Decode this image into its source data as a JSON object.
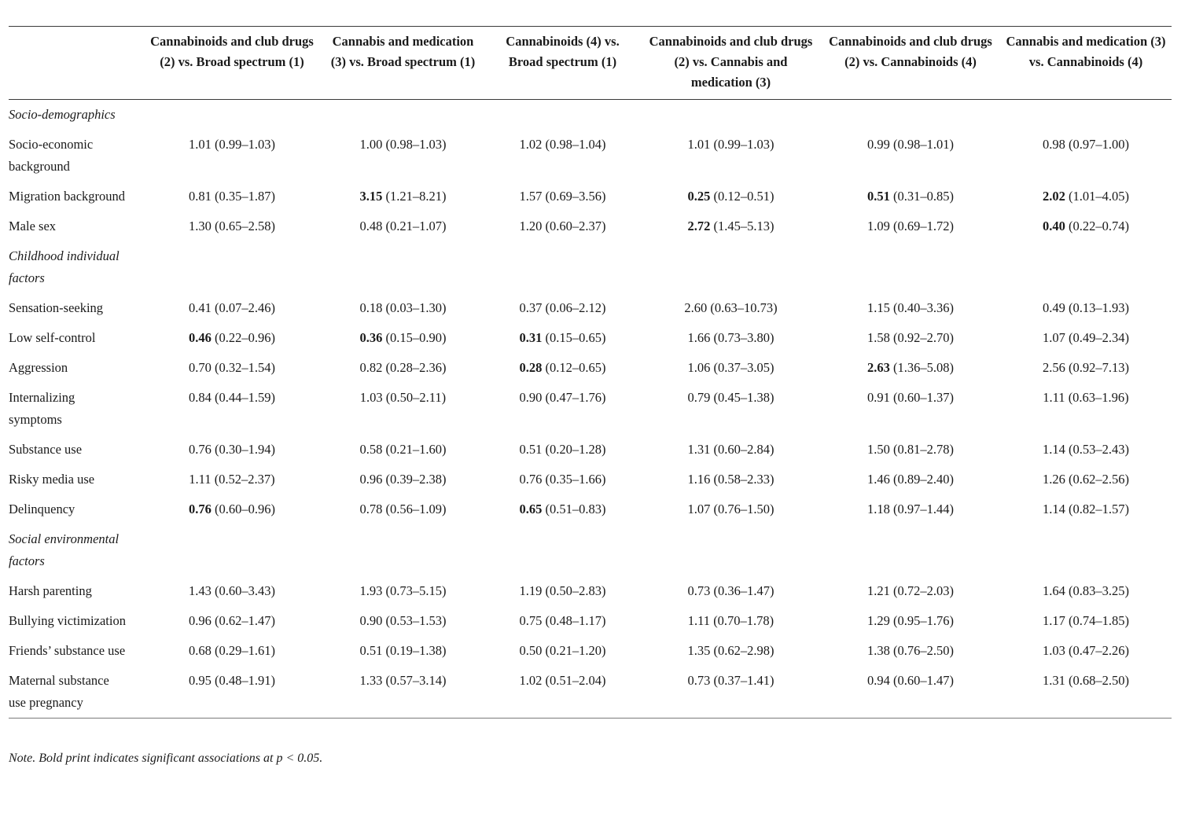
{
  "table": {
    "columns": [
      "Cannabinoids and club drugs (2) vs. Broad spectrum (1)",
      "Cannabis and medication (3) vs. Broad spectrum (1)",
      "Cannabinoids (4) vs. Broad spectrum (1)",
      "Cannabinoids and club drugs (2) vs. Cannabis and medication (3)",
      "Cannabinoids and club drugs (2) vs. Cannabinoids (4)",
      "Cannabis and medication (3) vs. Cannabinoids (4)"
    ],
    "sections": [
      {
        "label": "Socio-demographics",
        "rows": [
          {
            "label": "Socio-economic background",
            "cells": [
              {
                "value": "1.01",
                "ci": "(0.99–1.03)",
                "bold": false
              },
              {
                "value": "1.00",
                "ci": "(0.98–1.03)",
                "bold": false
              },
              {
                "value": "1.02",
                "ci": "(0.98–1.04)",
                "bold": false
              },
              {
                "value": "1.01",
                "ci": "(0.99–1.03)",
                "bold": false
              },
              {
                "value": "0.99",
                "ci": "(0.98–1.01)",
                "bold": false
              },
              {
                "value": "0.98",
                "ci": "(0.97–1.00)",
                "bold": false
              }
            ]
          },
          {
            "label": "Migration background",
            "cells": [
              {
                "value": "0.81",
                "ci": "(0.35–1.87)",
                "bold": false
              },
              {
                "value": "3.15",
                "ci": "(1.21–8.21)",
                "bold": true
              },
              {
                "value": "1.57",
                "ci": "(0.69–3.56)",
                "bold": false
              },
              {
                "value": "0.25",
                "ci": "(0.12–0.51)",
                "bold": true
              },
              {
                "value": "0.51",
                "ci": "(0.31–0.85)",
                "bold": true
              },
              {
                "value": "2.02",
                "ci": "(1.01–4.05)",
                "bold": true
              }
            ]
          },
          {
            "label": "Male sex",
            "cells": [
              {
                "value": "1.30",
                "ci": "(0.65–2.58)",
                "bold": false
              },
              {
                "value": "0.48",
                "ci": "(0.21–1.07)",
                "bold": false
              },
              {
                "value": "1.20",
                "ci": "(0.60–2.37)",
                "bold": false
              },
              {
                "value": "2.72",
                "ci": "(1.45–5.13)",
                "bold": true
              },
              {
                "value": "1.09",
                "ci": "(0.69–1.72)",
                "bold": false
              },
              {
                "value": "0.40",
                "ci": "(0.22–0.74)",
                "bold": true
              }
            ]
          }
        ]
      },
      {
        "label": "Childhood individual factors",
        "rows": [
          {
            "label": "Sensation-seeking",
            "cells": [
              {
                "value": "0.41",
                "ci": "(0.07–2.46)",
                "bold": false
              },
              {
                "value": "0.18",
                "ci": "(0.03–1.30)",
                "bold": false
              },
              {
                "value": "0.37",
                "ci": "(0.06–2.12)",
                "bold": false
              },
              {
                "value": "2.60",
                "ci": "(0.63–10.73)",
                "bold": false
              },
              {
                "value": "1.15",
                "ci": "(0.40–3.36)",
                "bold": false
              },
              {
                "value": "0.49",
                "ci": "(0.13–1.93)",
                "bold": false
              }
            ]
          },
          {
            "label": "Low self-control",
            "cells": [
              {
                "value": "0.46",
                "ci": "(0.22–0.96)",
                "bold": true
              },
              {
                "value": "0.36",
                "ci": "(0.15–0.90)",
                "bold": true
              },
              {
                "value": "0.31",
                "ci": "(0.15–0.65)",
                "bold": true
              },
              {
                "value": "1.66",
                "ci": "(0.73–3.80)",
                "bold": false
              },
              {
                "value": "1.58",
                "ci": "(0.92–2.70)",
                "bold": false
              },
              {
                "value": "1.07",
                "ci": "(0.49–2.34)",
                "bold": false
              }
            ]
          },
          {
            "label": "Aggression",
            "cells": [
              {
                "value": "0.70",
                "ci": "(0.32–1.54)",
                "bold": false
              },
              {
                "value": "0.82",
                "ci": "(0.28–2.36)",
                "bold": false
              },
              {
                "value": "0.28",
                "ci": "(0.12–0.65)",
                "bold": true
              },
              {
                "value": "1.06",
                "ci": "(0.37–3.05)",
                "bold": false
              },
              {
                "value": "2.63",
                "ci": "(1.36–5.08)",
                "bold": true
              },
              {
                "value": "2.56",
                "ci": "(0.92–7.13)",
                "bold": false
              }
            ]
          },
          {
            "label": "Internalizing symptoms",
            "cells": [
              {
                "value": "0.84",
                "ci": "(0.44–1.59)",
                "bold": false
              },
              {
                "value": "1.03",
                "ci": "(0.50–2.11)",
                "bold": false
              },
              {
                "value": "0.90",
                "ci": "(0.47–1.76)",
                "bold": false
              },
              {
                "value": "0.79",
                "ci": "(0.45–1.38)",
                "bold": false
              },
              {
                "value": "0.91",
                "ci": "(0.60–1.37)",
                "bold": false
              },
              {
                "value": "1.11",
                "ci": "(0.63–1.96)",
                "bold": false
              }
            ]
          },
          {
            "label": "Substance use",
            "cells": [
              {
                "value": "0.76",
                "ci": "(0.30–1.94)",
                "bold": false
              },
              {
                "value": "0.58",
                "ci": "(0.21–1.60)",
                "bold": false
              },
              {
                "value": "0.51",
                "ci": "(0.20–1.28)",
                "bold": false
              },
              {
                "value": "1.31",
                "ci": "(0.60–2.84)",
                "bold": false
              },
              {
                "value": "1.50",
                "ci": "(0.81–2.78)",
                "bold": false
              },
              {
                "value": "1.14",
                "ci": "(0.53–2.43)",
                "bold": false
              }
            ]
          },
          {
            "label": "Risky media use",
            "cells": [
              {
                "value": "1.11",
                "ci": "(0.52–2.37)",
                "bold": false
              },
              {
                "value": "0.96",
                "ci": "(0.39–2.38)",
                "bold": false
              },
              {
                "value": "0.76",
                "ci": "(0.35–1.66)",
                "bold": false
              },
              {
                "value": "1.16",
                "ci": "(0.58–2.33)",
                "bold": false
              },
              {
                "value": "1.46",
                "ci": "(0.89–2.40)",
                "bold": false
              },
              {
                "value": "1.26",
                "ci": "(0.62–2.56)",
                "bold": false
              }
            ]
          },
          {
            "label": "Delinquency",
            "cells": [
              {
                "value": "0.76",
                "ci": "(0.60–0.96)",
                "bold": true
              },
              {
                "value": "0.78",
                "ci": "(0.56–1.09)",
                "bold": false
              },
              {
                "value": "0.65",
                "ci": "(0.51–0.83)",
                "bold": true
              },
              {
                "value": "1.07",
                "ci": "(0.76–1.50)",
                "bold": false
              },
              {
                "value": "1.18",
                "ci": "(0.97–1.44)",
                "bold": false
              },
              {
                "value": "1.14",
                "ci": "(0.82–1.57)",
                "bold": false
              }
            ]
          }
        ]
      },
      {
        "label": "Social environmental factors",
        "rows": [
          {
            "label": "Harsh parenting",
            "cells": [
              {
                "value": "1.43",
                "ci": "(0.60–3.43)",
                "bold": false
              },
              {
                "value": "1.93",
                "ci": "(0.73–5.15)",
                "bold": false
              },
              {
                "value": "1.19",
                "ci": "(0.50–2.83)",
                "bold": false
              },
              {
                "value": "0.73",
                "ci": "(0.36–1.47)",
                "bold": false
              },
              {
                "value": "1.21",
                "ci": "(0.72–2.03)",
                "bold": false
              },
              {
                "value": "1.64",
                "ci": "(0.83–3.25)",
                "bold": false
              }
            ]
          },
          {
            "label": "Bullying victimization",
            "cells": [
              {
                "value": "0.96",
                "ci": "(0.62–1.47)",
                "bold": false
              },
              {
                "value": "0.90",
                "ci": "(0.53–1.53)",
                "bold": false
              },
              {
                "value": "0.75",
                "ci": "(0.48–1.17)",
                "bold": false
              },
              {
                "value": "1.11",
                "ci": "(0.70–1.78)",
                "bold": false
              },
              {
                "value": "1.29",
                "ci": "(0.95–1.76)",
                "bold": false
              },
              {
                "value": "1.17",
                "ci": "(0.74–1.85)",
                "bold": false
              }
            ]
          },
          {
            "label": "Friends’ substance use",
            "cells": [
              {
                "value": "0.68",
                "ci": "(0.29–1.61)",
                "bold": false
              },
              {
                "value": "0.51",
                "ci": "(0.19–1.38)",
                "bold": false
              },
              {
                "value": "0.50",
                "ci": "(0.21–1.20)",
                "bold": false
              },
              {
                "value": "1.35",
                "ci": "(0.62–2.98)",
                "bold": false
              },
              {
                "value": "1.38",
                "ci": "(0.76–2.50)",
                "bold": false
              },
              {
                "value": "1.03",
                "ci": "(0.47–2.26)",
                "bold": false
              }
            ]
          },
          {
            "label": "Maternal substance use pregnancy",
            "cells": [
              {
                "value": "0.95",
                "ci": "(0.48–1.91)",
                "bold": false
              },
              {
                "value": "1.33",
                "ci": "(0.57–3.14)",
                "bold": false
              },
              {
                "value": "1.02",
                "ci": "(0.51–2.04)",
                "bold": false
              },
              {
                "value": "0.73",
                "ci": "(0.37–1.41)",
                "bold": false
              },
              {
                "value": "0.94",
                "ci": "(0.60–1.47)",
                "bold": false
              },
              {
                "value": "1.31",
                "ci": "(0.68–2.50)",
                "bold": false
              }
            ]
          }
        ]
      }
    ],
    "note": "Note. Bold print indicates significant associations at p < 0.05."
  }
}
